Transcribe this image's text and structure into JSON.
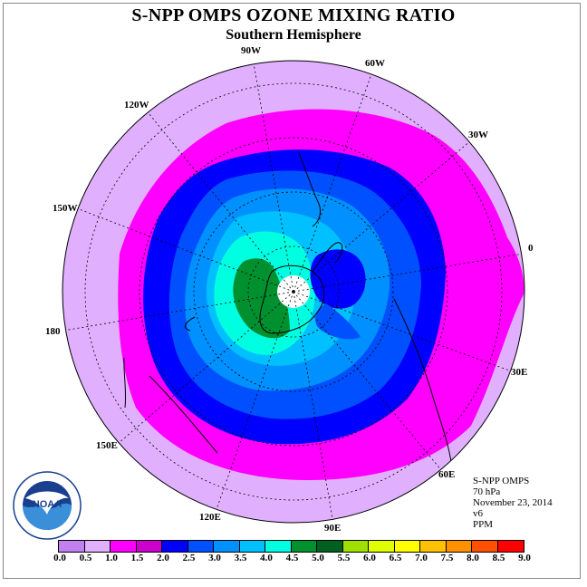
{
  "title": "S-NPP OMPS OZONE MIXING RATIO",
  "subtitle": "Southern Hemisphere",
  "longitude_labels": [
    "90W",
    "60W",
    "30W",
    "0",
    "30E",
    "60E",
    "90E",
    "120E",
    "150E",
    "180",
    "150W",
    "120W"
  ],
  "info": {
    "instrument": "S-NPP OMPS",
    "level": "70 hPa",
    "date": "November 23, 2014",
    "version": "v6",
    "units": "PPM"
  },
  "logo_text": "NOAA",
  "colorbar": {
    "colors": [
      "#c080f0",
      "#e0b0ff",
      "#ff00ff",
      "#cc00cc",
      "#0000ff",
      "#0050ff",
      "#0090ff",
      "#00c0ff",
      "#00ffe0",
      "#009030",
      "#006020",
      "#a0e000",
      "#e0ff00",
      "#ffff00",
      "#ffc000",
      "#ff9000",
      "#ff5000",
      "#ff0000",
      "#c02020",
      "#8b5a2b"
    ],
    "ticks": [
      "0.0",
      "0.5",
      "1.0",
      "1.5",
      "2.0",
      "2.5",
      "3.0",
      "3.5",
      "4.0",
      "4.5",
      "5.0",
      "5.5",
      "6.0",
      "6.5",
      "7.0",
      "7.5",
      "8.0",
      "8.5",
      "9.0"
    ]
  },
  "map_colors": {
    "outer": "#e0b0ff",
    "ring1": "#ff00ff",
    "ring2": "#0000ff",
    "ring3": "#0050ff",
    "ring4": "#0090ff",
    "ring5": "#00c0ff",
    "ring6": "#00ffe0",
    "max": "#009030",
    "hole": "#ffffff"
  }
}
